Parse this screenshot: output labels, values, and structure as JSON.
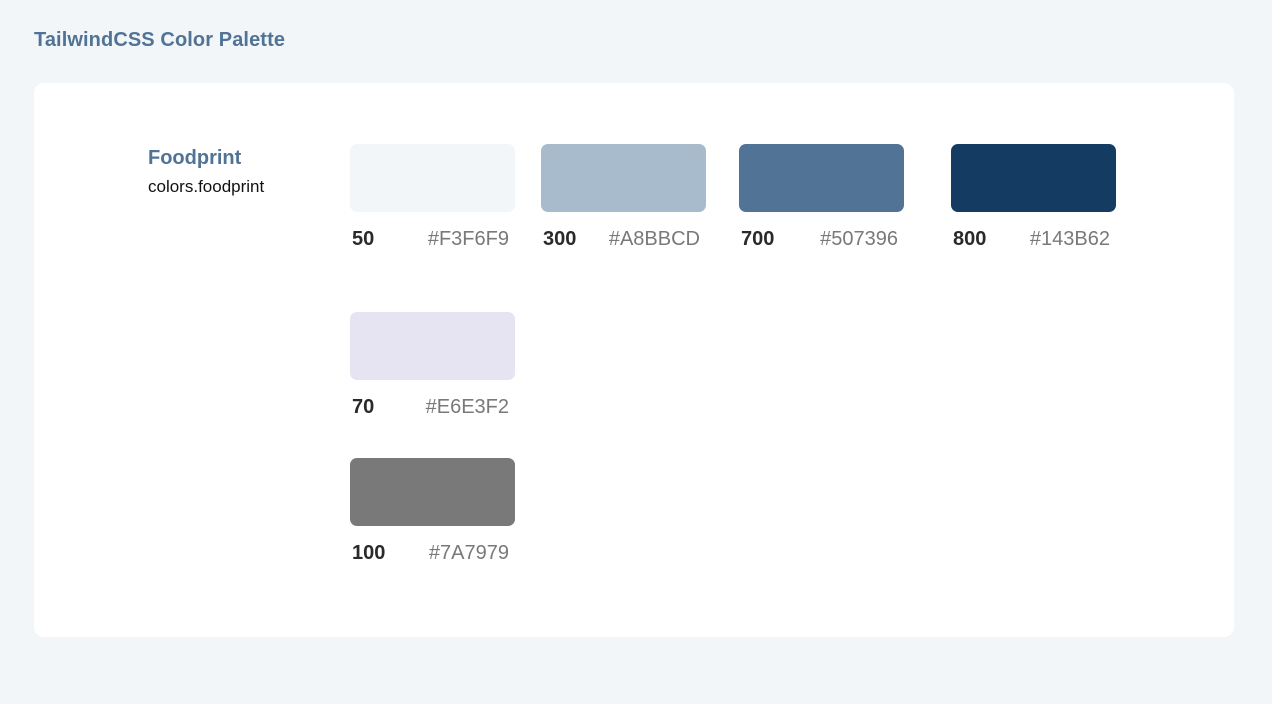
{
  "header": {
    "title": "TailwindCSS Color Palette"
  },
  "palette": {
    "name": "Foodprint",
    "key": "colors.foodprint",
    "swatches": [
      {
        "shade": "50",
        "hex": "#F3F6F9",
        "color": "#F3F6F9"
      },
      {
        "shade": "300",
        "hex": "#A8BBCD",
        "color": "#A8BBCD"
      },
      {
        "shade": "700",
        "hex": "#507396",
        "color": "#507396"
      },
      {
        "shade": "800",
        "hex": "#143B62",
        "color": "#143B62"
      },
      {
        "shade": "70",
        "hex": "#E6E3F2",
        "color": "#E6E3F2"
      },
      {
        "shade": "100",
        "hex": "#7A7979",
        "color": "#7A7979"
      }
    ]
  }
}
